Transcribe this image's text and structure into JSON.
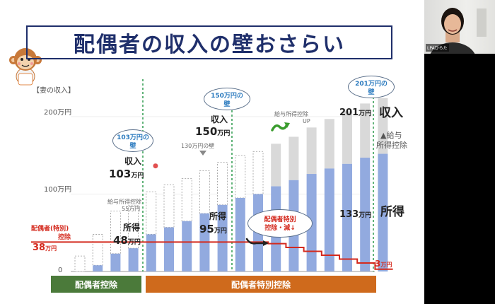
{
  "title": "配偶者の収入の壁おさらい",
  "axis": {
    "y_title": "【妻の収入】",
    "ticks": [
      "200万円",
      "100万円",
      "0"
    ]
  },
  "chart_data": {
    "type": "bar",
    "categories": [
      "",
      "",
      "",
      "",
      "",
      "",
      "",
      "",
      "",
      "",
      "",
      "",
      "",
      "",
      "",
      "",
      "",
      ""
    ],
    "series": [
      {
        "name": "所得",
        "values": [
          0,
          8,
          23,
          30,
          48,
          57,
          65,
          75,
          86,
          95,
          100,
          110,
          118,
          126,
          133,
          139,
          147,
          152
        ]
      },
      {
        "name": "給与所得控除",
        "values": [
          20,
          40,
          55,
          55,
          55,
          55,
          55,
          55,
          55,
          55,
          55,
          55,
          56,
          60,
          64,
          68,
          70,
          72
        ]
      }
    ],
    "ylim": [
      0,
      210
    ],
    "spouse_deduction_line": [
      38,
      38,
      38,
      38,
      38,
      38,
      38,
      38,
      38,
      38,
      38,
      36,
      31,
      26,
      21,
      16,
      11,
      3
    ]
  },
  "walls": {
    "w103": {
      "amount": "103万円の",
      "label": "壁"
    },
    "w150": {
      "amount": "150万円の",
      "label": "壁"
    },
    "w201": {
      "amount": "201万円の",
      "label": "壁"
    }
  },
  "annotations": {
    "wall_130": "130万円の壁",
    "salary_deduction_up": "給与所得控除",
    "up": "UP",
    "salary_deduction_55": "給与所得控除",
    "salary_deduction_55_amount": "55万円",
    "income_label": "収入",
    "income_103": "103",
    "income_150": "150",
    "income_201": "201",
    "unit_man": "万円",
    "right_income": "収入",
    "right_deduction_1": "▲給与",
    "right_deduction_2": "所得控除",
    "shotoku_label": "所得",
    "shotoku_48": "48",
    "shotoku_95": "95",
    "shotoku_133": "133",
    "right_shotoku": "所得",
    "spouse_label_1": "配偶者(特別)",
    "spouse_label_2": "控除",
    "spouse_38": "38",
    "spouse_3": "3",
    "bubble_1": "配偶者特別",
    "bubble_2": "控除・減↓"
  },
  "bands": {
    "spouse_deduction": "配偶者控除",
    "spouse_special_deduction": "配偶者特別控除"
  },
  "colors": {
    "income_bar": "#92aadf",
    "deduction_bar": "#d9d9d9",
    "green_band": "#4b7a3a",
    "orange_band": "#cf6a1c",
    "red_line": "#d42a1e",
    "wall_line": "#2e9c4e"
  },
  "video": {
    "participant_name": "LPAひらた"
  }
}
